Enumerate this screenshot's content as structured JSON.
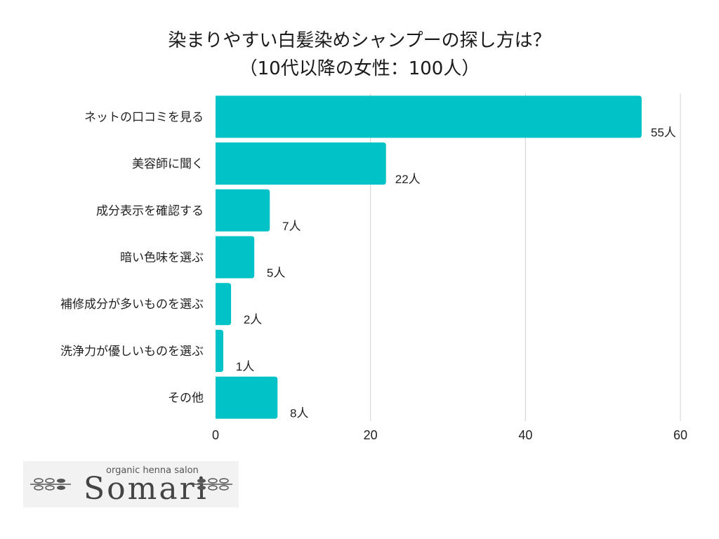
{
  "chart_data": {
    "type": "bar",
    "orientation": "horizontal",
    "title": [
      "染まりやすい白髪染めシャンプーの探し方は？",
      "（10代以降の女性：100人）"
    ],
    "categories": [
      "ネットの口コミを見る",
      "美容師に聞く",
      "成分表示を確認する",
      "暗い色味を選ぶ",
      "補修成分が多いものを選ぶ",
      "洗浄力が優しいものを選ぶ",
      "その他"
    ],
    "values": [
      55,
      22,
      7,
      5,
      2,
      1,
      8
    ],
    "value_suffix": "人",
    "xlim": [
      0,
      60
    ],
    "xticks": [
      0,
      20,
      40,
      60
    ],
    "grid": true,
    "bar_color": "#00c2c7"
  },
  "logo": {
    "tagline": "organic henna salon",
    "name": "Somari"
  },
  "colors": {
    "bar": "#00c2c7",
    "grid": "#d0d0d0",
    "logo_bg": "#f2f2f2"
  }
}
